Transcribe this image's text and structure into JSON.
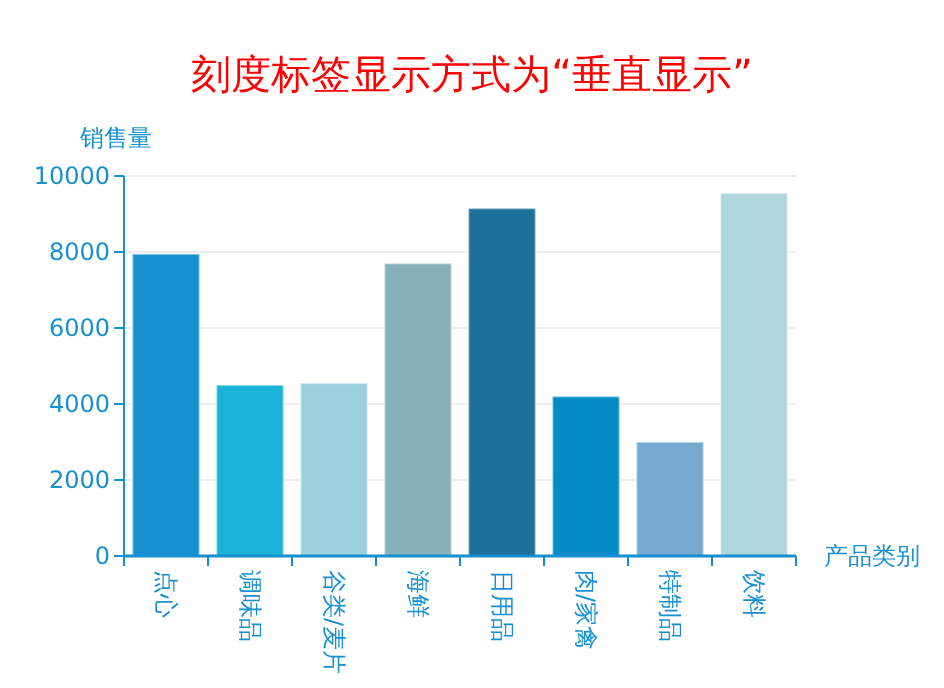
{
  "chart_data": {
    "type": "bar",
    "title": "刻度标签显示方式为“垂直显示”",
    "ylabel": "销售量",
    "xlabel": "产品类别",
    "categories": [
      "点心",
      "调味品",
      "谷类/麦片",
      "海鲜",
      "日用品",
      "肉/家禽",
      "特制品",
      "饮料"
    ],
    "values": [
      7950,
      4500,
      4550,
      7700,
      9150,
      4200,
      3000,
      9550
    ],
    "colors": [
      "#1790cf",
      "#1bb2d8",
      "#99d2dd",
      "#88b0bb",
      "#1c7099",
      "#038cc4",
      "#75abd0",
      "#afd6dd"
    ],
    "ylim": [
      0,
      10000
    ],
    "yticks": [
      0,
      2000,
      4000,
      6000,
      8000,
      10000
    ],
    "grid": "y"
  }
}
